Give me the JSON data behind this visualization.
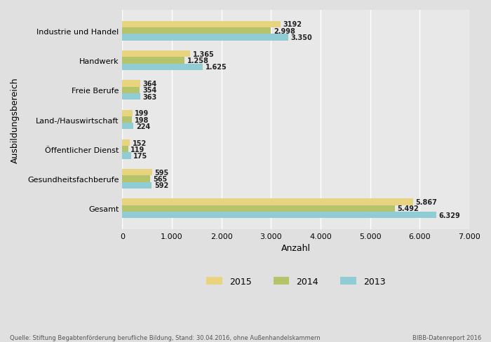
{
  "categories": [
    "Gesamt",
    "Gesundheitsfachberufe",
    "Öffentlicher Dienst",
    "Land-/Hauswirtschaft",
    "Freie Berufe",
    "Handwerk",
    "Industrie und Handel"
  ],
  "values_2015": [
    5867,
    595,
    152,
    199,
    364,
    1365,
    3192
  ],
  "values_2014": [
    5492,
    565,
    119,
    198,
    354,
    1258,
    2998
  ],
  "values_2013": [
    6329,
    592,
    175,
    224,
    363,
    1625,
    3350
  ],
  "labels_2015": [
    "5.867",
    "595",
    "152",
    "199",
    "364",
    "1.365",
    "3192"
  ],
  "labels_2014": [
    "5.492",
    "565",
    "119",
    "198",
    "354",
    "1.258",
    "2.998"
  ],
  "labels_2013": [
    "6.329",
    "592",
    "175",
    "224",
    "363",
    "1.625",
    "3.350"
  ],
  "color_2015": "#e8d47e",
  "color_2014": "#b5c46a",
  "color_2013": "#8fccd4",
  "bar_height": 0.22,
  "bar_gap": 0.22,
  "xlim": [
    0,
    7000
  ],
  "xticks": [
    0,
    1000,
    2000,
    3000,
    4000,
    5000,
    6000,
    7000
  ],
  "xtick_labels": [
    "0",
    "1.000",
    "2.000",
    "3.000",
    "4.000",
    "5.000",
    "6.000",
    "7.000"
  ],
  "xlabel": "Anzahl",
  "ylabel": "Ausbildungsbereich",
  "background_color": "#e0e0e0",
  "plot_bg_color": "#e8e8e8",
  "footer_left": "Quelle: Stiftung Begabtenförderung berufliche Bildung, Stand: 30.04.2016, ohne Außenhandelskammern",
  "footer_right": "BIBB-Datenreport 2016"
}
